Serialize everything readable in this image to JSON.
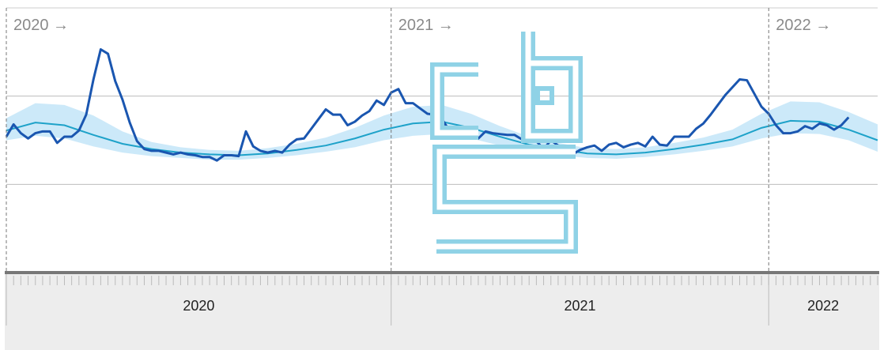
{
  "chart_data": {
    "type": "line",
    "periods": [
      {
        "label": "2020 →",
        "name": "2020",
        "weeks": 53
      },
      {
        "label": "2021 →",
        "name": "2021",
        "weeks": 52
      },
      {
        "label": "2022 →",
        "name": "2022",
        "weeks": 15
      }
    ],
    "xlim": [
      0,
      120
    ],
    "ylim": [
      0,
      300
    ],
    "ygrid": [
      100,
      200
    ],
    "observed": {
      "color": "#1a56b0",
      "values": [
        154,
        168,
        158,
        152,
        158,
        160,
        160,
        147,
        154,
        154,
        161,
        179,
        219,
        253,
        248,
        217,
        196,
        170,
        149,
        140,
        138,
        138,
        136,
        134,
        136,
        134,
        133,
        131,
        131,
        127,
        133,
        133,
        132,
        160,
        143,
        138,
        136,
        138,
        136,
        145,
        151,
        152,
        163,
        174,
        185,
        179,
        179,
        167,
        171,
        178,
        183,
        195,
        190,
        204,
        208,
        192,
        192,
        186,
        180,
        179,
        174,
        161,
        154,
        163,
        152,
        152,
        160,
        158,
        157,
        156,
        156,
        151,
        151,
        149,
        140,
        150,
        144,
        143,
        134,
        139,
        142,
        144,
        138,
        145,
        147,
        142,
        145,
        147,
        143,
        154,
        145,
        144,
        154,
        154,
        154,
        163,
        169,
        179,
        190,
        201,
        210,
        219,
        218,
        203,
        188,
        180,
        167,
        158,
        158,
        160,
        166,
        163,
        169,
        167,
        162,
        167,
        176
      ]
    },
    "expected": {
      "color": "#1ea2c9",
      "x": [
        0,
        4,
        8,
        12,
        16,
        20,
        24,
        28,
        32,
        36,
        40,
        44,
        48,
        52,
        56,
        60,
        64,
        68,
        72,
        76,
        80,
        84,
        88,
        92,
        96,
        100,
        104,
        108,
        112,
        116,
        120
      ],
      "values": [
        161,
        170,
        167,
        156,
        146,
        140,
        136,
        134,
        133,
        135,
        139,
        144,
        152,
        162,
        169,
        171,
        164,
        154,
        145,
        140,
        135,
        134,
        136,
        140,
        145,
        151,
        164,
        172,
        171,
        162,
        150
      ]
    },
    "band": {
      "color": "#bfe4f7",
      "high": [
        175,
        192,
        190,
        178,
        160,
        148,
        142,
        139,
        138,
        141,
        146,
        153,
        164,
        178,
        188,
        190,
        180,
        166,
        154,
        147,
        141,
        140,
        142,
        147,
        153,
        162,
        180,
        194,
        193,
        182,
        168
      ],
      "low": [
        150,
        155,
        152,
        143,
        136,
        132,
        130,
        128,
        128,
        130,
        133,
        137,
        142,
        150,
        155,
        157,
        152,
        144,
        137,
        133,
        130,
        129,
        131,
        134,
        138,
        143,
        152,
        158,
        157,
        150,
        137
      ]
    }
  }
}
